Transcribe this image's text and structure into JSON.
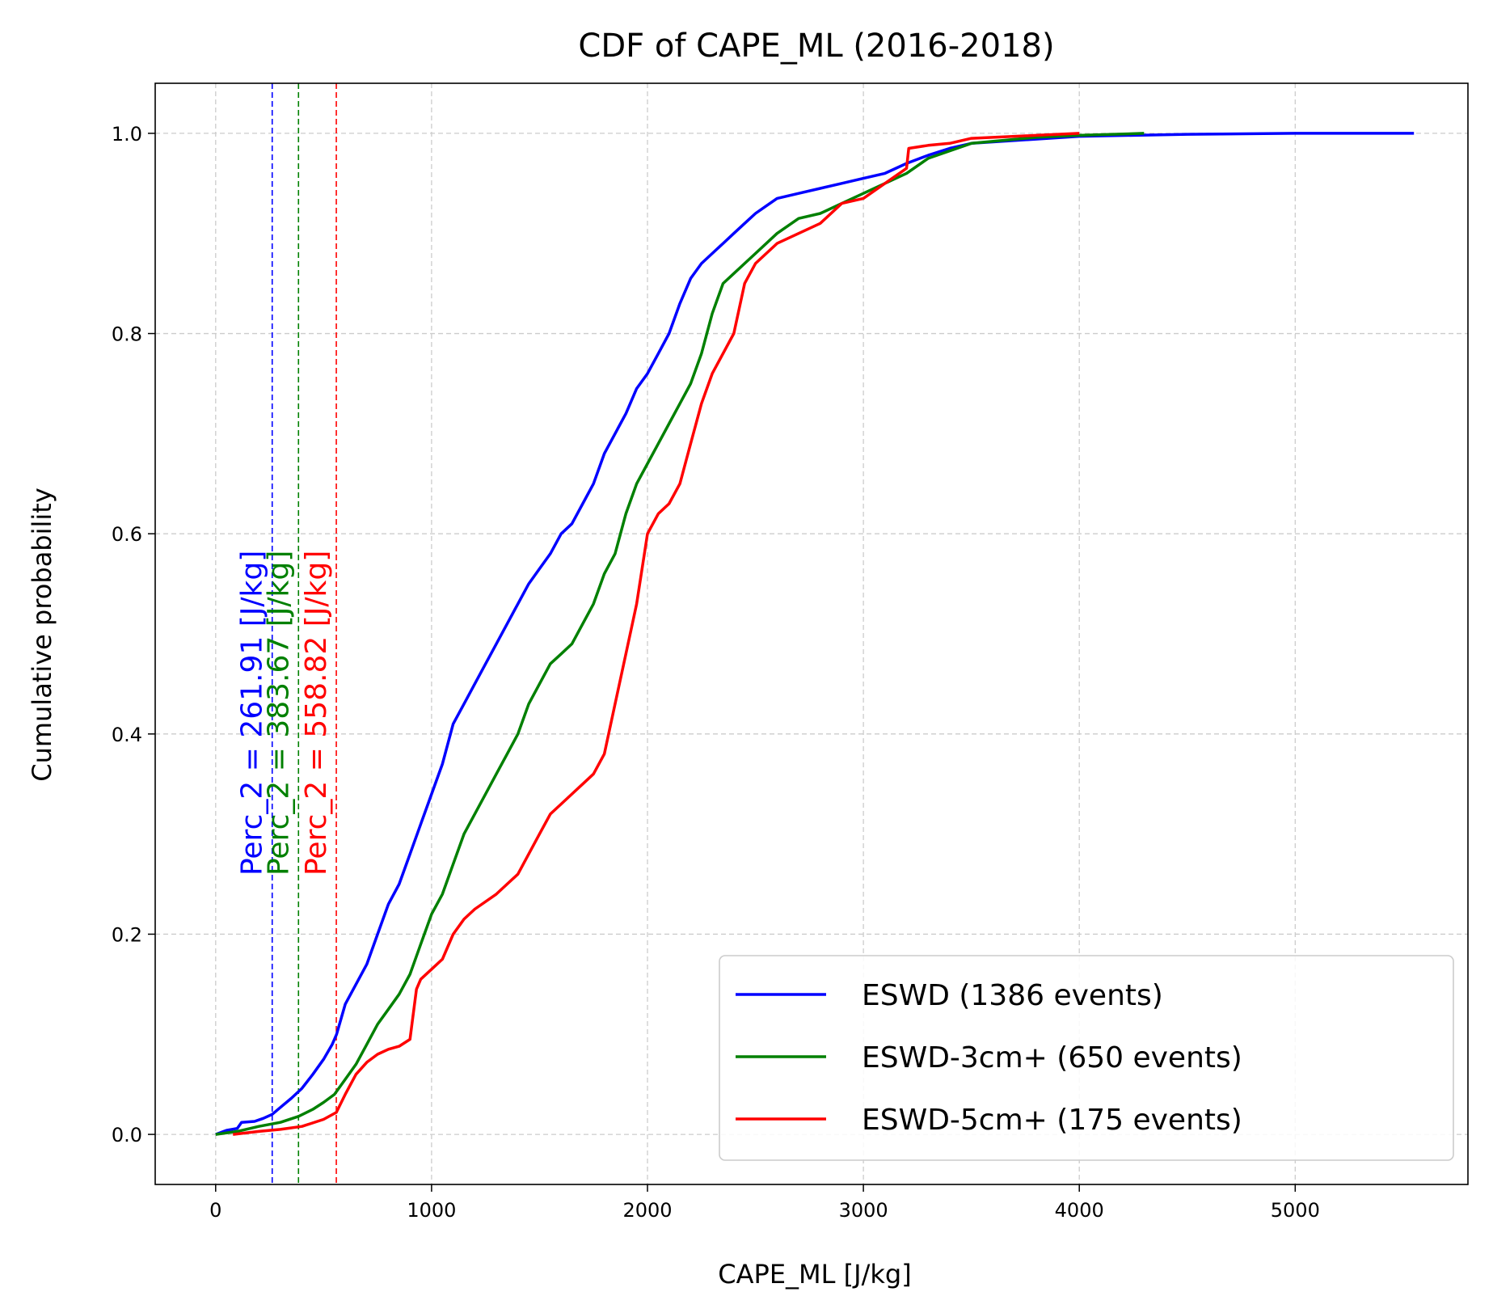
{
  "chart_data": {
    "type": "line",
    "title": "CDF of CAPE_ML (2016-2018)",
    "xlabel": "CAPE_ML [J/kg]",
    "ylabel": "Cumulative probability",
    "xlim": [
      -280,
      5800
    ],
    "ylim": [
      -0.05,
      1.05
    ],
    "xticks": [
      0,
      1000,
      2000,
      3000,
      4000,
      5000
    ],
    "xtick_labels": [
      "0",
      "1000",
      "2000",
      "3000",
      "4000",
      "5000"
    ],
    "yticks": [
      0.0,
      0.2,
      0.4,
      0.6,
      0.8,
      1.0
    ],
    "ytick_labels": [
      "0.0",
      "0.2",
      "0.4",
      "0.6",
      "0.8",
      "1.0"
    ],
    "grid": true,
    "legend_position": "bottom-right",
    "series": [
      {
        "name": "ESWD (1386 events)",
        "color": "#0000ff",
        "x": [
          0,
          50,
          100,
          120,
          180,
          220,
          261.91,
          300,
          350,
          400,
          450,
          500,
          540,
          560,
          600,
          650,
          700,
          750,
          800,
          850,
          900,
          950,
          1000,
          1050,
          1100,
          1150,
          1200,
          1250,
          1300,
          1350,
          1400,
          1450,
          1500,
          1550,
          1600,
          1650,
          1700,
          1750,
          1800,
          1850,
          1900,
          1950,
          2000,
          2050,
          2100,
          2150,
          2200,
          2250,
          2300,
          2350,
          2400,
          2450,
          2500,
          2600,
          2700,
          2800,
          2900,
          3000,
          3100,
          3200,
          3300,
          3400,
          3500,
          4000,
          4500,
          5000,
          5550
        ],
        "y": [
          0.0,
          0.004,
          0.006,
          0.012,
          0.013,
          0.016,
          0.02,
          0.027,
          0.036,
          0.046,
          0.06,
          0.075,
          0.09,
          0.1,
          0.13,
          0.15,
          0.17,
          0.2,
          0.23,
          0.25,
          0.28,
          0.31,
          0.34,
          0.37,
          0.41,
          0.43,
          0.45,
          0.47,
          0.49,
          0.51,
          0.53,
          0.55,
          0.565,
          0.58,
          0.6,
          0.61,
          0.63,
          0.65,
          0.68,
          0.7,
          0.72,
          0.745,
          0.76,
          0.78,
          0.8,
          0.83,
          0.855,
          0.87,
          0.88,
          0.89,
          0.9,
          0.91,
          0.92,
          0.935,
          0.94,
          0.945,
          0.95,
          0.955,
          0.96,
          0.97,
          0.978,
          0.985,
          0.99,
          0.997,
          0.999,
          1.0,
          1.0
        ]
      },
      {
        "name": "ESWD-3cm+ (650 events)",
        "color": "#008000",
        "x": [
          0,
          100,
          200,
          300,
          383.67,
          450,
          500,
          550,
          600,
          650,
          700,
          750,
          800,
          850,
          900,
          950,
          1000,
          1050,
          1100,
          1150,
          1200,
          1250,
          1300,
          1350,
          1400,
          1450,
          1500,
          1550,
          1600,
          1650,
          1700,
          1750,
          1800,
          1850,
          1900,
          1950,
          2000,
          2050,
          2100,
          2150,
          2200,
          2250,
          2300,
          2350,
          2400,
          2450,
          2500,
          2600,
          2700,
          2800,
          2900,
          3000,
          3100,
          3200,
          3300,
          3500,
          3800,
          4000,
          4300
        ],
        "y": [
          0.0,
          0.003,
          0.008,
          0.012,
          0.018,
          0.025,
          0.032,
          0.04,
          0.055,
          0.07,
          0.09,
          0.11,
          0.125,
          0.14,
          0.16,
          0.19,
          0.22,
          0.24,
          0.27,
          0.3,
          0.32,
          0.34,
          0.36,
          0.38,
          0.4,
          0.43,
          0.45,
          0.47,
          0.48,
          0.49,
          0.51,
          0.53,
          0.56,
          0.58,
          0.62,
          0.65,
          0.67,
          0.69,
          0.71,
          0.73,
          0.75,
          0.78,
          0.82,
          0.85,
          0.86,
          0.87,
          0.88,
          0.9,
          0.915,
          0.92,
          0.93,
          0.94,
          0.95,
          0.96,
          0.975,
          0.99,
          0.996,
          0.998,
          1.0
        ]
      },
      {
        "name": "ESWD-5cm+ (175 events)",
        "color": "#ff0000",
        "x": [
          80,
          200,
          300,
          400,
          500,
          558.82,
          600,
          650,
          700,
          750,
          800,
          850,
          900,
          930,
          950,
          1000,
          1050,
          1100,
          1150,
          1200,
          1300,
          1400,
          1500,
          1550,
          1600,
          1650,
          1700,
          1750,
          1800,
          1850,
          1900,
          1950,
          2000,
          2050,
          2100,
          2150,
          2200,
          2250,
          2300,
          2400,
          2450,
          2500,
          2600,
          2700,
          2800,
          2900,
          3000,
          3100,
          3200,
          3210,
          3300,
          3400,
          3500,
          3800,
          4000
        ],
        "y": [
          0.0,
          0.003,
          0.005,
          0.008,
          0.015,
          0.022,
          0.04,
          0.06,
          0.072,
          0.08,
          0.085,
          0.088,
          0.095,
          0.145,
          0.155,
          0.165,
          0.175,
          0.2,
          0.215,
          0.225,
          0.24,
          0.26,
          0.3,
          0.32,
          0.33,
          0.34,
          0.35,
          0.36,
          0.38,
          0.43,
          0.48,
          0.53,
          0.6,
          0.62,
          0.63,
          0.65,
          0.69,
          0.73,
          0.76,
          0.8,
          0.85,
          0.87,
          0.89,
          0.9,
          0.91,
          0.93,
          0.935,
          0.95,
          0.965,
          0.985,
          0.988,
          0.99,
          0.995,
          0.998,
          1.0
        ]
      }
    ],
    "annotations": [
      {
        "text": "Perc_2 = 261.91 [J/kg]",
        "x": 261.91,
        "color": "#0000ff"
      },
      {
        "text": "Perc_2 = 383.67 [J/kg]",
        "x": 383.67,
        "color": "#008000"
      },
      {
        "text": "Perc_2 = 558.82 [J/kg]",
        "x": 558.82,
        "color": "#ff0000"
      }
    ]
  }
}
